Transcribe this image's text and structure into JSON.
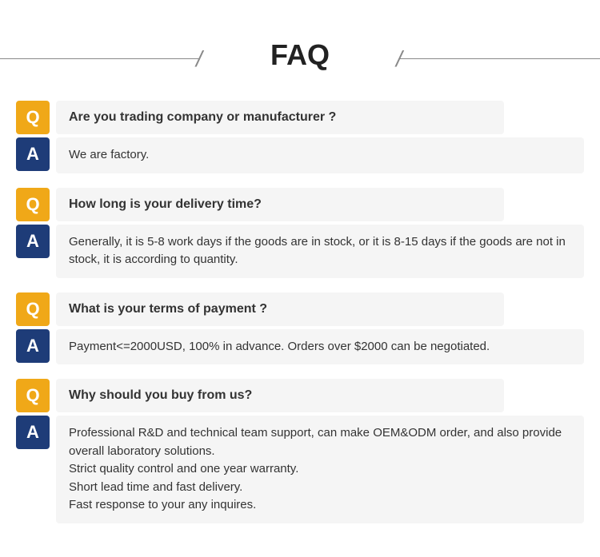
{
  "title": "FAQ",
  "badges": {
    "q": "Q",
    "a": "A"
  },
  "colors": {
    "q_bg": "#f0a818",
    "a_bg": "#1e3c78",
    "content_bg": "#f5f5f5",
    "title_color": "#222222",
    "text_color": "#333333",
    "line_color": "#888888",
    "page_bg": "#ffffff"
  },
  "items": [
    {
      "question": "Are you trading company or manufacturer ?",
      "answer_lines": [
        "We are factory."
      ]
    },
    {
      "question": "How long is your delivery time?",
      "answer_lines": [
        "Generally, it is 5-8 work days if the goods are in stock, or it is 8-15 days if the goods are not in stock, it is according to quantity."
      ]
    },
    {
      "question": "What is your terms of payment ?",
      "answer_lines": [
        "Payment<=2000USD, 100% in advance. Orders over $2000 can be negotiated."
      ]
    },
    {
      "question": "Why should you buy from us?",
      "answer_lines": [
        "Professional R&D and technical team support, can make OEM&ODM order, and also provide overall laboratory solutions.",
        "Strict quality control and one year warranty.",
        "Short lead time and fast delivery.",
        "Fast response to your any inquires."
      ]
    }
  ]
}
